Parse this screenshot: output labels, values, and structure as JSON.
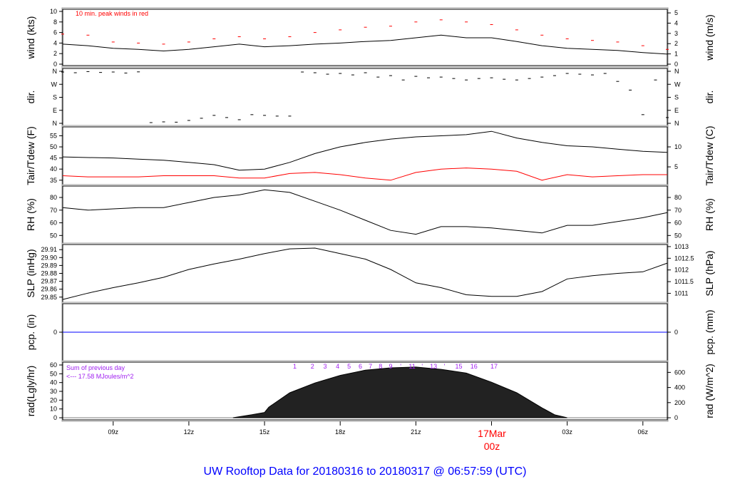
{
  "title": "UW Rooftop Data for 20180316  to  20180317 @ 06:57:59  (UTC)",
  "date_marker": {
    "day": "17Mar",
    "hour": "00z",
    "color": "#ff0000"
  },
  "colors": {
    "main": "#000000",
    "peak": "#ff0000",
    "dewpoint": "#ff0000",
    "precip": "#0000ff",
    "title": "#0000ff",
    "rad_annot": "#a020f0"
  },
  "chart_data": [
    {
      "type": "line",
      "ylabel": "wind (kts)",
      "ylabel_right": "wind (m/s)",
      "annotation": "10 min. peak winds in red",
      "ylim": [
        0,
        10
      ],
      "yticks": [
        "0",
        "2",
        "4",
        "6",
        "8",
        "10"
      ],
      "yticks_right": [
        "0",
        "1",
        "2",
        "3",
        "4",
        "5"
      ],
      "x": [
        "2018-03-16T07:00Z",
        "2018-03-16T08:00Z",
        "2018-03-16T09:00Z",
        "2018-03-16T10:00Z",
        "2018-03-16T11:00Z",
        "2018-03-16T12:00Z",
        "2018-03-16T13:00Z",
        "2018-03-16T14:00Z",
        "2018-03-16T15:00Z",
        "2018-03-16T16:00Z",
        "2018-03-16T17:00Z",
        "2018-03-16T18:00Z",
        "2018-03-16T19:00Z",
        "2018-03-16T20:00Z",
        "2018-03-16T21:00Z",
        "2018-03-16T22:00Z",
        "2018-03-16T23:00Z",
        "2018-03-17T00:00Z",
        "2018-03-17T01:00Z",
        "2018-03-17T02:00Z",
        "2018-03-17T03:00Z",
        "2018-03-17T04:00Z",
        "2018-03-17T05:00Z",
        "2018-03-17T06:00Z",
        "2018-03-17T06:58Z"
      ],
      "series": [
        {
          "name": "wind",
          "values": [
            3.8,
            3.5,
            3.0,
            2.8,
            2.5,
            2.8,
            3.3,
            3.8,
            3.3,
            3.5,
            3.8,
            4.0,
            4.3,
            4.5,
            5.0,
            5.5,
            5.0,
            5.0,
            4.3,
            3.5,
            3.0,
            2.8,
            2.6,
            2.2,
            1.9
          ]
        },
        {
          "name": "peak",
          "values": [
            5.7,
            5.5,
            4.2,
            4.0,
            3.8,
            4.2,
            4.8,
            5.2,
            4.8,
            5.2,
            6.0,
            6.5,
            7.0,
            7.2,
            8.0,
            8.4,
            8.0,
            7.5,
            6.5,
            5.5,
            4.8,
            4.5,
            4.2,
            3.5,
            2.8
          ]
        }
      ]
    },
    {
      "type": "scatter",
      "ylabel": "dir.",
      "ylabel_right": "dir.",
      "ylim": [
        0,
        360
      ],
      "yticks": [
        "N",
        "E",
        "S",
        "W",
        "N"
      ],
      "x": [
        "2018-03-16T07:00Z",
        "2018-03-16T07:30Z",
        "2018-03-16T08:00Z",
        "2018-03-16T08:30Z",
        "2018-03-16T09:00Z",
        "2018-03-16T09:30Z",
        "2018-03-16T10:00Z",
        "2018-03-16T10:30Z",
        "2018-03-16T11:00Z",
        "2018-03-16T11:30Z",
        "2018-03-16T12:00Z",
        "2018-03-16T12:30Z",
        "2018-03-16T13:00Z",
        "2018-03-16T13:30Z",
        "2018-03-16T14:00Z",
        "2018-03-16T14:30Z",
        "2018-03-16T15:00Z",
        "2018-03-16T15:30Z",
        "2018-03-16T16:00Z",
        "2018-03-16T16:30Z",
        "2018-03-16T17:00Z",
        "2018-03-16T17:30Z",
        "2018-03-16T18:00Z",
        "2018-03-16T18:30Z",
        "2018-03-16T19:00Z",
        "2018-03-16T19:30Z",
        "2018-03-16T20:00Z",
        "2018-03-16T20:30Z",
        "2018-03-16T21:00Z",
        "2018-03-16T21:30Z",
        "2018-03-16T22:00Z",
        "2018-03-16T22:30Z",
        "2018-03-16T23:00Z",
        "2018-03-16T23:30Z",
        "2018-03-17T00:00Z",
        "2018-03-17T00:30Z",
        "2018-03-17T01:00Z",
        "2018-03-17T01:30Z",
        "2018-03-17T02:00Z",
        "2018-03-17T02:30Z",
        "2018-03-17T03:00Z",
        "2018-03-17T03:30Z",
        "2018-03-17T04:00Z",
        "2018-03-17T04:30Z",
        "2018-03-17T05:00Z",
        "2018-03-17T05:30Z",
        "2018-03-17T06:00Z",
        "2018-03-17T06:30Z",
        "2018-03-17T06:58Z"
      ],
      "values": [
        355,
        350,
        358,
        352,
        355,
        348,
        356,
        5,
        10,
        8,
        20,
        35,
        55,
        40,
        25,
        60,
        55,
        50,
        50,
        355,
        350,
        340,
        345,
        335,
        350,
        320,
        330,
        300,
        325,
        315,
        320,
        310,
        300,
        310,
        315,
        305,
        300,
        310,
        320,
        330,
        345,
        340,
        335,
        345,
        290,
        230,
        60,
        300,
        40
      ]
    },
    {
      "type": "line",
      "ylabel": "Tair/Tdew (F)",
      "ylabel_right": "Tair/Tdew (C)",
      "ylim": [
        33,
        59
      ],
      "yticks": [
        "35",
        "40",
        "45",
        "50",
        "55"
      ],
      "yticks_right": [
        "5",
        "10"
      ],
      "x": "same as wind",
      "series": [
        {
          "name": "Tair",
          "values": [
            45.5,
            45.2,
            45,
            44.5,
            44,
            43,
            42,
            39.5,
            40,
            43,
            47,
            50,
            52,
            53.5,
            54.5,
            55,
            55.5,
            57,
            54,
            52,
            50.5,
            50,
            49,
            48,
            47.5
          ]
        },
        {
          "name": "Tdew",
          "values": [
            37,
            36.5,
            36.5,
            36.5,
            37,
            37,
            37,
            36,
            36,
            38,
            38.5,
            37.5,
            36,
            35,
            38.5,
            40,
            40.5,
            40,
            39,
            35,
            37.5,
            36.5,
            37,
            37.5,
            37.5
          ]
        }
      ]
    },
    {
      "type": "line",
      "ylabel": "RH (%)",
      "ylabel_right": "RH (%)",
      "ylim": [
        44,
        89
      ],
      "yticks": [
        "50",
        "60",
        "70",
        "80"
      ],
      "x": "same as wind",
      "values": [
        72,
        70,
        71,
        72,
        72,
        76,
        80,
        82,
        86,
        84,
        77,
        70,
        62,
        54,
        51,
        57,
        57,
        56,
        54,
        52,
        58,
        58,
        61,
        64,
        68
      ]
    },
    {
      "type": "line",
      "ylabel": "SLP (inHg)",
      "ylabel_right": "SLP (hPa)",
      "ylim": [
        29.8435,
        29.9165
      ],
      "yticks": [
        "29.85",
        "29.86",
        "29.87",
        "29.88",
        "29.89",
        "29.90",
        "29.91"
      ],
      "yticks_right": [
        "1011",
        "1011.5",
        "1012",
        "1012.5",
        "1013"
      ],
      "x": "same as wind",
      "values": [
        29.847,
        29.855,
        29.862,
        29.868,
        29.875,
        29.885,
        29.892,
        29.898,
        29.905,
        29.911,
        29.912,
        29.905,
        29.898,
        29.885,
        29.868,
        29.862,
        29.853,
        29.851,
        29.851,
        29.857,
        29.873,
        29.877,
        29.88,
        29.882,
        29.893
      ]
    },
    {
      "type": "line",
      "ylabel": "pcp. (in)",
      "ylabel_right": "pcp. (mm)",
      "ylim": [
        -1,
        1
      ],
      "yticks": [
        "0"
      ],
      "yticks_right": [
        "0"
      ],
      "x": "same as wind",
      "values": [
        0,
        0,
        0,
        0,
        0,
        0,
        0,
        0,
        0,
        0,
        0,
        0,
        0,
        0,
        0,
        0,
        0,
        0,
        0,
        0,
        0,
        0,
        0,
        0,
        0
      ]
    },
    {
      "type": "area",
      "ylabel": "rad(Lgly/hr)",
      "ylabel_right": "rad (W/m^2)",
      "ylim": [
        0,
        60
      ],
      "yticks": [
        "0",
        "10",
        "20",
        "30",
        "40",
        "50",
        "60"
      ],
      "yticks_right": [
        "0",
        "200",
        "400",
        "600"
      ],
      "annotation_1": "Sum of previous day",
      "annotation_2": "<--- 17.58 MJoules/m^2",
      "x": [
        "2018-03-16T13:45Z",
        "2018-03-16T14:30Z",
        "2018-03-16T15:00Z",
        "2018-03-16T15:10Z",
        "2018-03-16T16:00Z",
        "2018-03-16T17:00Z",
        "2018-03-16T18:00Z",
        "2018-03-16T19:00Z",
        "2018-03-16T20:00Z",
        "2018-03-16T21:00Z",
        "2018-03-16T22:00Z",
        "2018-03-16T23:00Z",
        "2018-03-17T00:00Z",
        "2018-03-17T01:00Z",
        "2018-03-17T02:00Z",
        "2018-03-17T02:30Z",
        "2018-03-17T03:00Z"
      ],
      "values_wm2": [
        0,
        40,
        70,
        140,
        330,
        460,
        560,
        630,
        660,
        670,
        640,
        590,
        470,
        330,
        130,
        40,
        0
      ],
      "hour_markers": [
        {
          "label": "1",
          "time": "2018-03-16T16:12Z"
        },
        {
          "label": "2",
          "time": "2018-03-16T16:54Z"
        },
        {
          "label": "3",
          "time": "2018-03-16T17:24Z"
        },
        {
          "label": "4",
          "time": "2018-03-16T17:54Z"
        },
        {
          "label": "5",
          "time": "2018-03-16T18:21Z"
        },
        {
          "label": "6",
          "time": "2018-03-16T18:48Z"
        },
        {
          "label": "7",
          "time": "2018-03-16T19:12Z"
        },
        {
          "label": "8",
          "time": "2018-03-16T19:36Z"
        },
        {
          "label": "9",
          "time": "2018-03-16T20:00Z"
        },
        {
          "label": "'",
          "time": "2018-03-16T20:24Z"
        },
        {
          "label": "11",
          "time": "2018-03-16T20:51Z"
        },
        {
          "label": "'",
          "time": "2018-03-16T21:15Z"
        },
        {
          "label": "13",
          "time": "2018-03-16T21:42Z"
        },
        {
          "label": "'",
          "time": "2018-03-16T22:08Z"
        },
        {
          "label": "15",
          "time": "2018-03-16T22:42Z"
        },
        {
          "label": "16",
          "time": "2018-03-16T23:18Z"
        },
        {
          "label": "17",
          "time": "2018-03-17T00:06Z"
        }
      ]
    }
  ],
  "x_axis": {
    "range": [
      "2018-03-16T07:00Z",
      "2018-03-17T06:58Z"
    ],
    "ticks": [
      {
        "label": "09z",
        "time": "2018-03-16T09:00Z"
      },
      {
        "label": "12z",
        "time": "2018-03-16T12:00Z"
      },
      {
        "label": "15z",
        "time": "2018-03-16T15:00Z"
      },
      {
        "label": "18z",
        "time": "2018-03-16T18:00Z"
      },
      {
        "label": "21z",
        "time": "2018-03-16T21:00Z"
      },
      {
        "label": "",
        "time": "2018-03-17T00:00Z"
      },
      {
        "label": "",
        "time": "2018-03-17T03:00Z"
      },
      {
        "label": "06z",
        "time": "2018-03-17T06:00Z"
      }
    ],
    "label_03z": "03z"
  }
}
